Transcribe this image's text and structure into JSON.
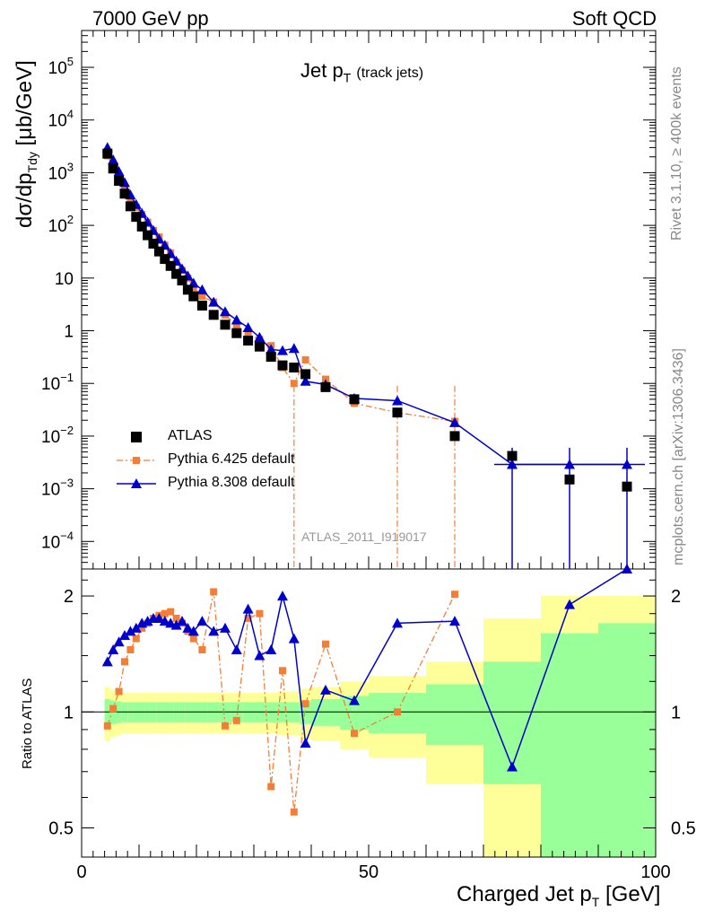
{
  "header": {
    "left": "7000 GeV pp",
    "right": "Soft QCD"
  },
  "side_text": {
    "rivet": "Rivet 3.1.10, ≥ 400k events",
    "mcplots": "mcplots.cern.ch [arXiv:1306.3436]"
  },
  "plot_title_main": "Jet p",
  "plot_title_sub": "T",
  "plot_title_extra": "(track jets)",
  "watermark": "ATLAS_2011_I919017",
  "y_label_top": "dσ/dp",
  "y_label_top_sub": "Tdy",
  "y_label_top_unit": "[μb/GeV]",
  "y_label_bottom": "Ratio to ATLAS",
  "x_label_main": "Charged Jet p",
  "x_label_sub": "T",
  "x_label_unit": "[GeV]",
  "legend": [
    {
      "label": "ATLAS",
      "color": "#000000",
      "marker": "square",
      "line": "none"
    },
    {
      "label": "Pythia 6.425 default",
      "color": "#f57e37",
      "marker": "small-square",
      "line": "dashdot"
    },
    {
      "label": "Pythia 8.308 default",
      "color": "#0000cc",
      "marker": "triangle",
      "line": "solid"
    }
  ],
  "colors": {
    "atlas": "#000000",
    "pythia6": "#f57e37",
    "pythia8": "#0000cc",
    "band_inner": "#99ff99",
    "band_outer": "#ffff99"
  },
  "chart_data": {
    "type": "scatter",
    "x": [
      4.5,
      5.5,
      6.5,
      7.5,
      8.5,
      9.5,
      10.5,
      11.5,
      12.5,
      13.5,
      14.5,
      15.5,
      16.5,
      17.5,
      18.5,
      19.5,
      21,
      23,
      25,
      27,
      29,
      31,
      33,
      35,
      37,
      39,
      42.5,
      47.5,
      55,
      65,
      75,
      85,
      95
    ],
    "x_ticks": [
      0,
      50,
      100
    ],
    "xlim": [
      0,
      100
    ],
    "top_panel": {
      "yscale": "log",
      "ylim": [
        3e-05,
        500000.0
      ],
      "y_ticks": [
        "10^-4",
        "10^-3",
        "10^-2",
        "10^-1",
        "1",
        "10",
        "10^2",
        "10^3",
        "10^4",
        "10^5"
      ],
      "series": [
        {
          "name": "ATLAS",
          "values": [
            2300,
            1200,
            700,
            400,
            230,
            145,
            95,
            65,
            45,
            32,
            23,
            17,
            12,
            9,
            6,
            4.5,
            3,
            2,
            1.3,
            0.9,
            0.65,
            0.5,
            0.32,
            0.22,
            0.2,
            0.15,
            0.085,
            0.05,
            0.028,
            0.01,
            0.0042,
            0.0015,
            0.0011
          ]
        },
        {
          "name": "Pythia 6.425 default",
          "values": [
            2100,
            1250,
            720,
            480,
            320,
            220,
            160,
            115,
            80,
            60,
            42,
            30,
            20,
            14,
            10,
            6.5,
            4.5,
            3.5,
            2.0,
            1.25,
            0.85,
            0.68,
            0.52,
            0.2,
            0.1,
            0.28,
            0.12,
            0.042,
            0.028,
            0.019
          ]
        },
        {
          "name": "Pythia 8.308 default",
          "values": [
            3000,
            1750,
            1050,
            650,
            380,
            250,
            170,
            115,
            80,
            55,
            42,
            29,
            21,
            15,
            11,
            8,
            6.0,
            3.5,
            2.3,
            1.6,
            1.15,
            0.75,
            0.44,
            0.42,
            0.46,
            0.11,
            0.095,
            0.052,
            0.047,
            0.018,
            0.0029,
            0.0029,
            0.0029
          ]
        }
      ]
    },
    "bottom_panel": {
      "yscale": "log",
      "ylim": [
        0.42,
        2.35
      ],
      "y_ticks": [
        0.5,
        1,
        2
      ],
      "reference": 1,
      "series": [
        {
          "name": "Pythia 6.425 default",
          "values": [
            0.92,
            1.02,
            1.13,
            1.35,
            1.45,
            1.55,
            1.65,
            1.7,
            1.75,
            1.78,
            1.8,
            1.82,
            1.75,
            1.7,
            1.62,
            1.55,
            1.45,
            2.05,
            0.92,
            0.95,
            1.75,
            1.8,
            0.64,
            1.28,
            0.55,
            1.05,
            1.5,
            0.88,
            1.0,
            2.02
          ]
        },
        {
          "name": "Pythia 8.308 default",
          "values": [
            1.35,
            1.45,
            1.52,
            1.58,
            1.62,
            1.65,
            1.7,
            1.72,
            1.75,
            1.75,
            1.72,
            1.7,
            1.68,
            1.72,
            1.65,
            1.62,
            1.72,
            1.62,
            1.65,
            1.45,
            1.85,
            1.4,
            1.45,
            2.0,
            1.55,
            0.83,
            1.14,
            1.07,
            1.7,
            1.72,
            0.72,
            1.9,
            2.35
          ]
        }
      ],
      "bands_x": [
        4,
        5,
        6,
        7,
        8,
        9,
        10,
        11,
        12,
        13,
        14,
        15,
        16,
        17,
        18,
        19,
        20,
        22,
        24,
        26,
        28,
        30,
        32,
        34,
        36,
        38,
        40,
        45,
        50,
        60,
        70,
        80,
        90,
        100
      ],
      "band_inner": [
        0.08,
        0.07,
        0.065,
        0.06,
        0.06,
        0.06,
        0.06,
        0.06,
        0.06,
        0.06,
        0.06,
        0.06,
        0.06,
        0.06,
        0.06,
        0.06,
        0.06,
        0.06,
        0.06,
        0.06,
        0.06,
        0.06,
        0.06,
        0.06,
        0.06,
        0.07,
        0.08,
        0.1,
        0.12,
        0.18,
        0.35,
        0.6,
        0.7
      ],
      "band_outer": [
        0.16,
        0.14,
        0.13,
        0.12,
        0.12,
        0.12,
        0.12,
        0.12,
        0.12,
        0.12,
        0.12,
        0.12,
        0.12,
        0.12,
        0.12,
        0.12,
        0.12,
        0.12,
        0.12,
        0.12,
        0.12,
        0.12,
        0.12,
        0.13,
        0.13,
        0.15,
        0.16,
        0.2,
        0.24,
        0.35,
        0.75,
        1.0,
        1.0
      ]
    }
  }
}
